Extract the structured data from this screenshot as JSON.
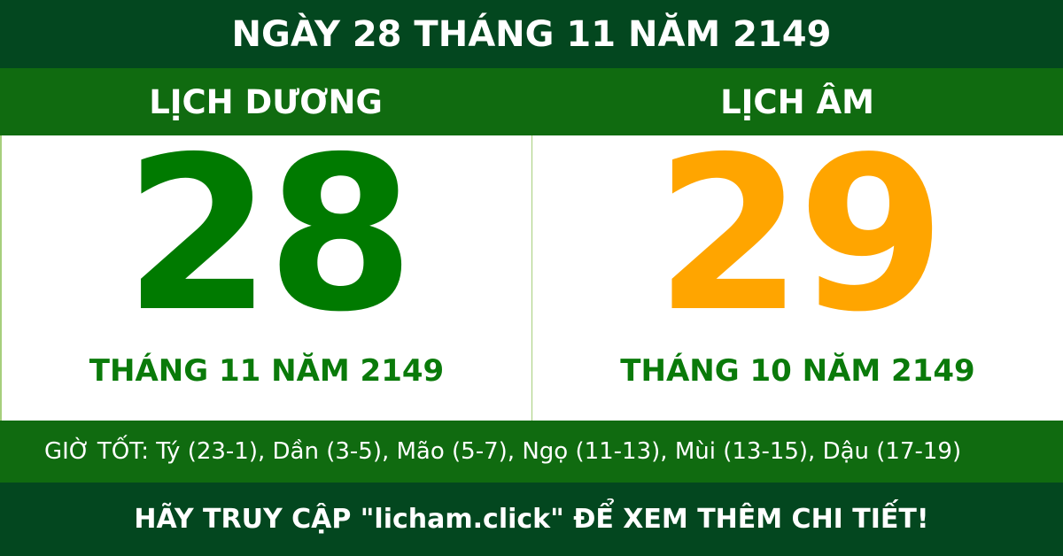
{
  "title": "NGÀY 28 THÁNG 11 NĂM 2149",
  "solar": {
    "label": "LỊCH DƯƠNG",
    "day": "28",
    "month_year": "THÁNG 11 NĂM 2149",
    "color": "#007a00"
  },
  "lunar": {
    "label": "LỊCH ÂM",
    "day": "29",
    "month_year": "THÁNG 10 NĂM 2149",
    "color": "#ffa500"
  },
  "good_hours": "GIỜ TỐT: Tý (23-1), Dần (3-5), Mão (5-7), Ngọ (11-13), Mùi (13-15), Dậu (17-19)",
  "footer": "HÃY TRUY CẬP \"licham.click\" ĐỂ XEM THÊM CHI TIẾT!"
}
